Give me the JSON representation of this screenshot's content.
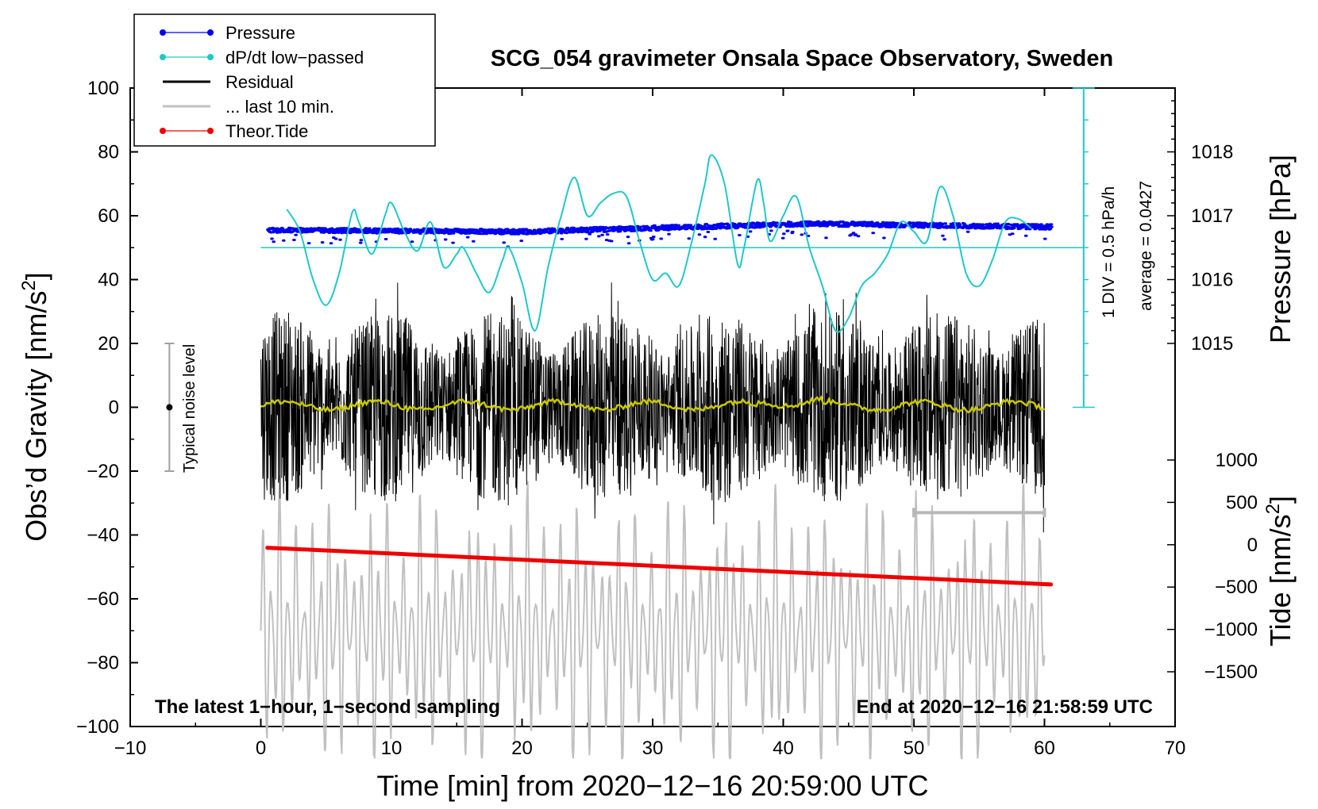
{
  "chart_data": {
    "type": "line",
    "title": "SCG_054 gravimeter Onsala Space Observatory, Sweden",
    "xlabel": "Time [min] from 2020−12−16 20:59:00 UTC",
    "ylabel": "Obs’d Gravity [nm/s²]",
    "ylabel_main": "Obs’d Gravity [nm/s",
    "ylabel_sup": "2",
    "ylabel_tail": "]",
    "xlim": [
      -10,
      70
    ],
    "ylim": [
      -100,
      100
    ],
    "x_ticks": [
      "−10",
      "0",
      "10",
      "20",
      "30",
      "40",
      "50",
      "60",
      "70"
    ],
    "y_ticks": [
      "−100",
      "−80",
      "−60",
      "−40",
      "−20",
      "0",
      "20",
      "40",
      "60",
      "80",
      "100"
    ],
    "pressure_axis": {
      "label": "Pressure [hPa]",
      "ticks": [
        {
          "label": "1018",
          "gravity_equiv": 80
        },
        {
          "label": "1017",
          "gravity_equiv": 60
        },
        {
          "label": "1016",
          "gravity_equiv": 40
        },
        {
          "label": "1015",
          "gravity_equiv": 20
        }
      ]
    },
    "tide_axis": {
      "label_main": "Tide [nm/s",
      "label_sup": "2",
      "label_tail": "]",
      "ticks": [
        {
          "label": "1000",
          "value": 1000
        },
        {
          "label": "500",
          "value": 500
        },
        {
          "label": "0",
          "value": 0
        },
        {
          "label": "−500",
          "value": -500
        },
        {
          "label": "−1000",
          "value": -1000
        },
        {
          "label": "−1500",
          "value": -1500
        }
      ],
      "range": [
        -1500,
        1000
      ]
    },
    "dpdt_scale": {
      "div_label": "1 DIV = 0.5 hPa/h",
      "average_label": "average = 0.0427",
      "baseline_gravity_equiv": 50
    },
    "legend": [
      {
        "label": "Pressure",
        "color": "#0000ee",
        "style": "line-dot"
      },
      {
        "label": "dP/dt low−passed",
        "color": "#20c8c8",
        "style": "line-dot"
      },
      {
        "label": "Residual",
        "color": "#000000",
        "style": "line"
      },
      {
        "label": "... last 10 min.",
        "color": "#c0c0c0",
        "style": "line"
      },
      {
        "label": "Theor.Tide",
        "color": "#ee0000",
        "style": "line-dot"
      }
    ],
    "noise_bar": {
      "label": "Typical noise level",
      "x": -7,
      "center": 0,
      "half_range": 20
    },
    "last10_bar": {
      "x_start": 50,
      "x_end": 60,
      "y": -33
    },
    "footer_left": "The latest 1−hour, 1−second sampling",
    "footer_right": "End at 2020−12−16 21:58:59 UTC",
    "series": [
      {
        "name": "Pressure",
        "color": "#0000ee",
        "x_range": [
          0.5,
          60.5
        ],
        "approx_values": [
          {
            "x": 0.5,
            "y": 55.5
          },
          {
            "x": 20,
            "y": 55
          },
          {
            "x": 42,
            "y": 57.5
          },
          {
            "x": 60.5,
            "y": 56.5
          }
        ]
      },
      {
        "name": "dP/dt low-passed",
        "color": "#20c8c8",
        "points": [
          [
            2.0,
            62
          ],
          [
            3.0,
            55
          ],
          [
            4.0,
            40
          ],
          [
            5.0,
            32
          ],
          [
            6.0,
            42
          ],
          [
            7.0,
            61
          ],
          [
            7.5,
            58
          ],
          [
            8.5,
            48
          ],
          [
            9.5,
            60
          ],
          [
            10.0,
            64
          ],
          [
            11.0,
            55
          ],
          [
            12.0,
            49
          ],
          [
            13.0,
            58
          ],
          [
            14.0,
            44
          ],
          [
            15.0,
            48
          ],
          [
            15.5,
            50
          ],
          [
            16.5,
            42
          ],
          [
            17.5,
            36
          ],
          [
            18.5,
            46
          ],
          [
            19.0,
            50
          ],
          [
            20.0,
            39
          ],
          [
            21.0,
            24
          ],
          [
            22.0,
            44
          ],
          [
            23.0,
            60
          ],
          [
            24.0,
            72
          ],
          [
            25.0,
            60
          ],
          [
            26.0,
            64
          ],
          [
            27.0,
            67
          ],
          [
            28.0,
            66
          ],
          [
            29.0,
            52
          ],
          [
            30.0,
            40
          ],
          [
            31.0,
            42
          ],
          [
            32.0,
            38
          ],
          [
            33.0,
            52
          ],
          [
            34.0,
            70
          ],
          [
            34.5,
            79
          ],
          [
            35.5,
            70
          ],
          [
            36.5,
            45
          ],
          [
            37.0,
            50
          ],
          [
            38.0,
            71
          ],
          [
            38.5,
            64
          ],
          [
            39.0,
            52
          ],
          [
            40.0,
            60
          ],
          [
            41.0,
            66
          ],
          [
            42.0,
            50
          ],
          [
            43.0,
            38
          ],
          [
            44.0,
            24
          ],
          [
            45.0,
            28
          ],
          [
            46.0,
            38
          ],
          [
            47.0,
            42
          ],
          [
            48.0,
            48
          ],
          [
            49.0,
            58
          ],
          [
            50.0,
            55
          ],
          [
            51.0,
            52
          ],
          [
            52.0,
            69
          ],
          [
            53.0,
            60
          ],
          [
            54.0,
            42
          ],
          [
            55.0,
            38
          ],
          [
            56.0,
            46
          ],
          [
            57.0,
            58
          ],
          [
            58.0,
            59
          ],
          [
            59.0,
            56
          ]
        ]
      },
      {
        "name": "Residual",
        "color": "#000000",
        "x_range": [
          0,
          60
        ],
        "amplitude_nm_s2": 30
      },
      {
        "name": "Residual smoothed",
        "color": "#c8c800",
        "x_range": [
          0,
          60
        ],
        "approx_mean": 0.5
      },
      {
        "name": "... last 10 min.",
        "color": "#c0c0c0",
        "x_range": [
          0,
          60
        ],
        "amplitude_nm_s2": 50,
        "center": -70
      },
      {
        "name": "Theor.Tide",
        "color": "#ee0000",
        "x_range": [
          0.5,
          60.5
        ],
        "y_start": -44,
        "y_end": -55.5
      }
    ]
  }
}
